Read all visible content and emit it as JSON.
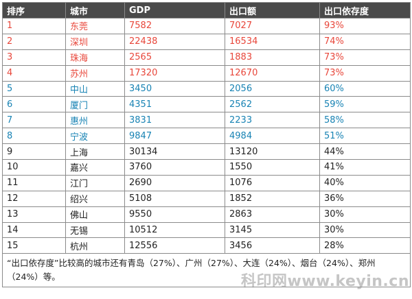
{
  "table": {
    "headers": [
      "排序",
      "城市",
      "GDP",
      "出口额",
      "出口依存度"
    ],
    "rows": [
      {
        "rank": "1",
        "city": "东莞",
        "gdp": "7582",
        "export": "7027",
        "ratio": "93%",
        "style": "red"
      },
      {
        "rank": "2",
        "city": "深圳",
        "gdp": "22438",
        "export": "16534",
        "ratio": "74%",
        "style": "red"
      },
      {
        "rank": "3",
        "city": "珠海",
        "gdp": "2565",
        "export": "1883",
        "ratio": "73%",
        "style": "red"
      },
      {
        "rank": "4",
        "city": "苏州",
        "gdp": "17320",
        "export": "12670",
        "ratio": "73%",
        "style": "red"
      },
      {
        "rank": "5",
        "city": "中山",
        "gdp": "3450",
        "export": "2056",
        "ratio": "60%",
        "style": "blue"
      },
      {
        "rank": "6",
        "city": "厦门",
        "gdp": "4351",
        "export": "2562",
        "ratio": "59%",
        "style": "blue"
      },
      {
        "rank": "7",
        "city": "惠州",
        "gdp": "3831",
        "export": "2233",
        "ratio": "58%",
        "style": "blue"
      },
      {
        "rank": "8",
        "city": "宁波",
        "gdp": "9847",
        "export": "4984",
        "ratio": "51%",
        "style": "blue"
      },
      {
        "rank": "9",
        "city": "上海",
        "gdp": "30134",
        "export": "13120",
        "ratio": "44%",
        "style": "black"
      },
      {
        "rank": "10",
        "city": "嘉兴",
        "gdp": "3760",
        "export": "1550",
        "ratio": "41%",
        "style": "black"
      },
      {
        "rank": "11",
        "city": "江门",
        "gdp": "2690",
        "export": "1076",
        "ratio": "40%",
        "style": "black"
      },
      {
        "rank": "12",
        "city": "绍兴",
        "gdp": "5108",
        "export": "1852",
        "ratio": "36%",
        "style": "black"
      },
      {
        "rank": "13",
        "city": "佛山",
        "gdp": "9550",
        "export": "2863",
        "ratio": "30%",
        "style": "black"
      },
      {
        "rank": "14",
        "city": "无锡",
        "gdp": "10512",
        "export": "3145",
        "ratio": "30%",
        "style": "black"
      },
      {
        "rank": "15",
        "city": "杭州",
        "gdp": "12556",
        "export": "3456",
        "ratio": "28%",
        "style": "black"
      }
    ],
    "note": "“出口依存度”比较高的城市还有青岛（27%）、广州（27%）、大连（24%）、烟台（24%）、郑州（24%）等。"
  },
  "watermark": "科印网www.keyin.cn",
  "colors": {
    "header_bg": "#4a4a4a",
    "red": "#e8463a",
    "blue": "#1883b4",
    "text": "#222222"
  }
}
